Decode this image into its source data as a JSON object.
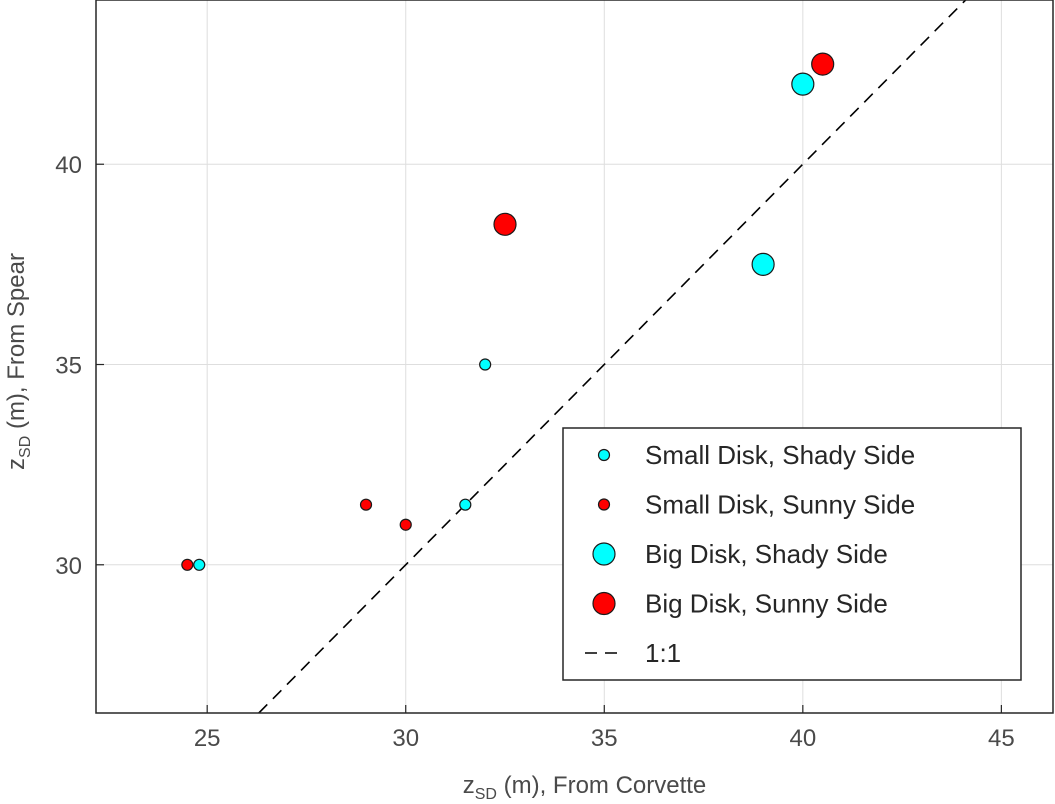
{
  "chart_data": {
    "type": "scatter",
    "title": "",
    "xlabel": {
      "base": "z",
      "sub": "SD",
      "rest": " (m), From Corvette"
    },
    "ylabel": {
      "base": "z",
      "sub": "SD",
      "rest": " (m), From Spear"
    },
    "xlim": [
      22.2,
      46.3
    ],
    "ylim": [
      26.3,
      44.1
    ],
    "xticks": [
      25,
      30,
      35,
      40,
      45
    ],
    "yticks": [
      30,
      35,
      40
    ],
    "grid": true,
    "legend_position": "lower-right",
    "series": [
      {
        "name": "Small Disk, Shady Side",
        "marker": "small",
        "color": "#00ffff",
        "points": [
          {
            "x": 24.8,
            "y": 30.0
          },
          {
            "x": 31.5,
            "y": 31.5
          },
          {
            "x": 32.0,
            "y": 35.0
          }
        ]
      },
      {
        "name": "Small Disk, Sunny Side",
        "marker": "small",
        "color": "#ff0000",
        "points": [
          {
            "x": 24.5,
            "y": 30.0
          },
          {
            "x": 29.0,
            "y": 31.5
          },
          {
            "x": 30.0,
            "y": 31.0
          }
        ]
      },
      {
        "name": "Big Disk, Shady Side",
        "marker": "big",
        "color": "#00ffff",
        "points": [
          {
            "x": 39.0,
            "y": 37.5
          },
          {
            "x": 40.0,
            "y": 42.0
          }
        ]
      },
      {
        "name": "Big Disk, Sunny Side",
        "marker": "big",
        "color": "#ff0000",
        "points": [
          {
            "x": 32.5,
            "y": 38.5
          },
          {
            "x": 40.5,
            "y": 42.5
          }
        ]
      }
    ],
    "reference_line": {
      "name": "1:1",
      "style": "dashed",
      "color": "#000000"
    }
  }
}
